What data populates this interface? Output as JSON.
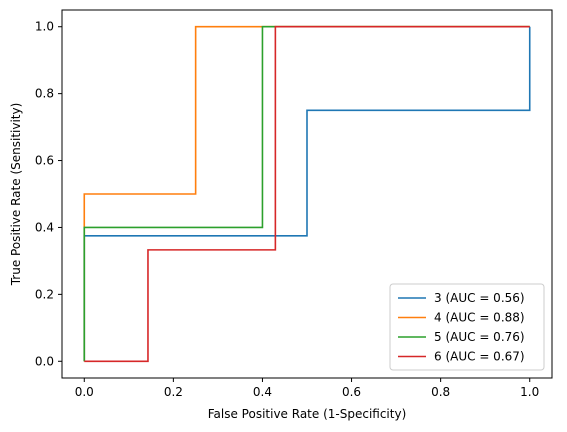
{
  "chart_data": {
    "type": "line",
    "title": "",
    "xlabel": "False Positive Rate (1-Specificity)",
    "ylabel": "True Positive Rate (Sensitivity)",
    "xlim": [
      -0.05,
      1.05
    ],
    "ylim": [
      -0.05,
      1.05
    ],
    "xticks": [
      0.0,
      0.2,
      0.4,
      0.6,
      0.8,
      1.0
    ],
    "yticks": [
      0.0,
      0.2,
      0.4,
      0.6,
      0.8,
      1.0
    ],
    "xtick_labels": [
      "0.0",
      "0.2",
      "0.4",
      "0.6",
      "0.8",
      "1.0"
    ],
    "ytick_labels": [
      "0.0",
      "0.2",
      "0.4",
      "0.6",
      "0.8",
      "1.0"
    ],
    "grid": false,
    "legend_position": "lower-right",
    "series": [
      {
        "name": "3 (AUC = 0.56)",
        "color": "#1f77b4",
        "x": [
          0.0,
          0.0,
          0.5,
          0.5,
          1.0,
          1.0
        ],
        "y": [
          0.0,
          0.375,
          0.375,
          0.75,
          0.75,
          1.0
        ]
      },
      {
        "name": "4 (AUC = 0.88)",
        "color": "#ff7f0e",
        "x": [
          0.0,
          0.0,
          0.25,
          0.25,
          1.0
        ],
        "y": [
          0.0,
          0.5,
          0.5,
          1.0,
          1.0
        ]
      },
      {
        "name": "5 (AUC = 0.76)",
        "color": "#2ca02c",
        "x": [
          0.0,
          0.0,
          0.4,
          0.4,
          1.0
        ],
        "y": [
          0.0,
          0.4,
          0.4,
          1.0,
          1.0
        ]
      },
      {
        "name": "6 (AUC = 0.67)",
        "color": "#d62728",
        "x": [
          0.0,
          0.143,
          0.143,
          0.429,
          0.429,
          1.0
        ],
        "y": [
          0.0,
          0.0,
          0.333,
          0.333,
          1.0,
          1.0
        ]
      }
    ]
  }
}
